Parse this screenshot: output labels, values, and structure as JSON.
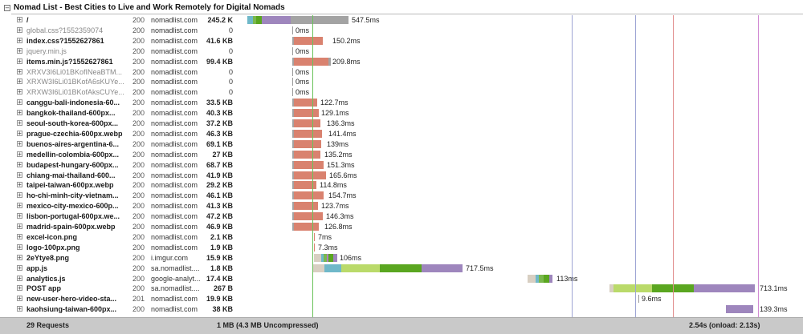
{
  "page": {
    "title": "Nomad List - Best Cities to Live and Work Remotely for Digital Nomads"
  },
  "colors": {
    "image": "#d9826f",
    "ssl": "#b07fc0",
    "connect": "#7ab84d",
    "dns": "#6fb8c9",
    "wait": "#a3a3a3",
    "script": "#bada6a",
    "scriptDark": "#5aa620",
    "purple": "#9e86bd",
    "marker_green": "#6ac25a",
    "marker_blue": "#7b86c6",
    "marker_red": "#e08c8c",
    "marker_magenta": "#d18ad3"
  },
  "requests": [
    {
      "url": "/",
      "status": "200",
      "domain": "nomadlist.com",
      "size": "245.2 K",
      "timing": "547.5ms",
      "dim": false
    },
    {
      "url": "global.css?1552359074",
      "status": "200",
      "domain": "nomadlist.com",
      "size": "0",
      "timing": "0ms",
      "dim": true
    },
    {
      "url": "index.css?1552627861",
      "status": "200",
      "domain": "nomadlist.com",
      "size": "41.6 KB",
      "timing": "150.2ms",
      "dim": false
    },
    {
      "url": "jquery.min.js",
      "status": "200",
      "domain": "nomadlist.com",
      "size": "0",
      "timing": "0ms",
      "dim": true
    },
    {
      "url": "items.min.js?1552627861",
      "status": "200",
      "domain": "nomadlist.com",
      "size": "99.4 KB",
      "timing": "209.8ms",
      "dim": false
    },
    {
      "url": "XRXV3I6Li01BKofINeaBTM...",
      "status": "200",
      "domain": "nomadlist.com",
      "size": "0",
      "timing": "0ms",
      "dim": true
    },
    {
      "url": "XRXW3I6Li01BKofA6sKUYe...",
      "status": "200",
      "domain": "nomadlist.com",
      "size": "0",
      "timing": "0ms",
      "dim": true
    },
    {
      "url": "XRXW3I6Li01BKofAksCUYe...",
      "status": "200",
      "domain": "nomadlist.com",
      "size": "0",
      "timing": "0ms",
      "dim": true
    },
    {
      "url": "canggu-bali-indonesia-60...",
      "status": "200",
      "domain": "nomadlist.com",
      "size": "33.5 KB",
      "timing": "122.7ms",
      "dim": false
    },
    {
      "url": "bangkok-thailand-600px...",
      "status": "200",
      "domain": "nomadlist.com",
      "size": "40.3 KB",
      "timing": "129.1ms",
      "dim": false
    },
    {
      "url": "seoul-south-korea-600px...",
      "status": "200",
      "domain": "nomadlist.com",
      "size": "37.2 KB",
      "timing": "136.3ms",
      "dim": false
    },
    {
      "url": "prague-czechia-600px.webp",
      "status": "200",
      "domain": "nomadlist.com",
      "size": "46.3 KB",
      "timing": "141.4ms",
      "dim": false
    },
    {
      "url": "buenos-aires-argentina-6...",
      "status": "200",
      "domain": "nomadlist.com",
      "size": "69.1 KB",
      "timing": "139ms",
      "dim": false
    },
    {
      "url": "medellin-colombia-600px...",
      "status": "200",
      "domain": "nomadlist.com",
      "size": "27 KB",
      "timing": "135.2ms",
      "dim": false
    },
    {
      "url": "budapest-hungary-600px...",
      "status": "200",
      "domain": "nomadlist.com",
      "size": "68.7 KB",
      "timing": "151.3ms",
      "dim": false
    },
    {
      "url": "chiang-mai-thailand-600...",
      "status": "200",
      "domain": "nomadlist.com",
      "size": "41.9 KB",
      "timing": "165.6ms",
      "dim": false
    },
    {
      "url": "taipei-taiwan-600px.webp",
      "status": "200",
      "domain": "nomadlist.com",
      "size": "29.2 KB",
      "timing": "114.8ms",
      "dim": false
    },
    {
      "url": "ho-chi-minh-city-vietnam...",
      "status": "200",
      "domain": "nomadlist.com",
      "size": "46.1 KB",
      "timing": "154.7ms",
      "dim": false
    },
    {
      "url": "mexico-city-mexico-600p...",
      "status": "200",
      "domain": "nomadlist.com",
      "size": "41.3 KB",
      "timing": "123.7ms",
      "dim": false
    },
    {
      "url": "lisbon-portugal-600px.we...",
      "status": "200",
      "domain": "nomadlist.com",
      "size": "47.2 KB",
      "timing": "146.3ms",
      "dim": false
    },
    {
      "url": "madrid-spain-600px.webp",
      "status": "200",
      "domain": "nomadlist.com",
      "size": "46.9 KB",
      "timing": "126.8ms",
      "dim": false
    },
    {
      "url": "excel-icon.png",
      "status": "200",
      "domain": "nomadlist.com",
      "size": "2.1 KB",
      "timing": "7ms",
      "dim": false
    },
    {
      "url": "logo-100px.png",
      "status": "200",
      "domain": "nomadlist.com",
      "size": "1.9 KB",
      "timing": "7.3ms",
      "dim": false
    },
    {
      "url": "2eYtye8.png",
      "status": "200",
      "domain": "i.imgur.com",
      "size": "15.9 KB",
      "timing": "106ms",
      "dim": false
    },
    {
      "url": "app.js",
      "status": "200",
      "domain": "sa.nomadlist....",
      "size": "1.8 KB",
      "timing": "717.5ms",
      "dim": false
    },
    {
      "url": "analytics.js",
      "status": "200",
      "domain": "google-analyt...",
      "size": "17.4 KB",
      "timing": "113ms",
      "dim": false
    },
    {
      "url": "POST app",
      "status": "200",
      "domain": "sa.nomadlist....",
      "size": "267 B",
      "timing": "713.1ms",
      "dim": false
    },
    {
      "url": "new-user-hero-video-sta...",
      "status": "201",
      "domain": "nomadlist.com",
      "size": "19.9 KB",
      "timing": "9.6ms",
      "dim": false
    },
    {
      "url": "kaohsiung-taiwan-600px...",
      "status": "200",
      "domain": "nomadlist.com",
      "size": "38 KB",
      "timing": "139.3ms",
      "dim": false
    }
  ],
  "footer": {
    "requests": "29 Requests",
    "size": "1 MB  (4.3 MB Uncompressed)",
    "time": "2.54s (onload: 2.13s)"
  }
}
